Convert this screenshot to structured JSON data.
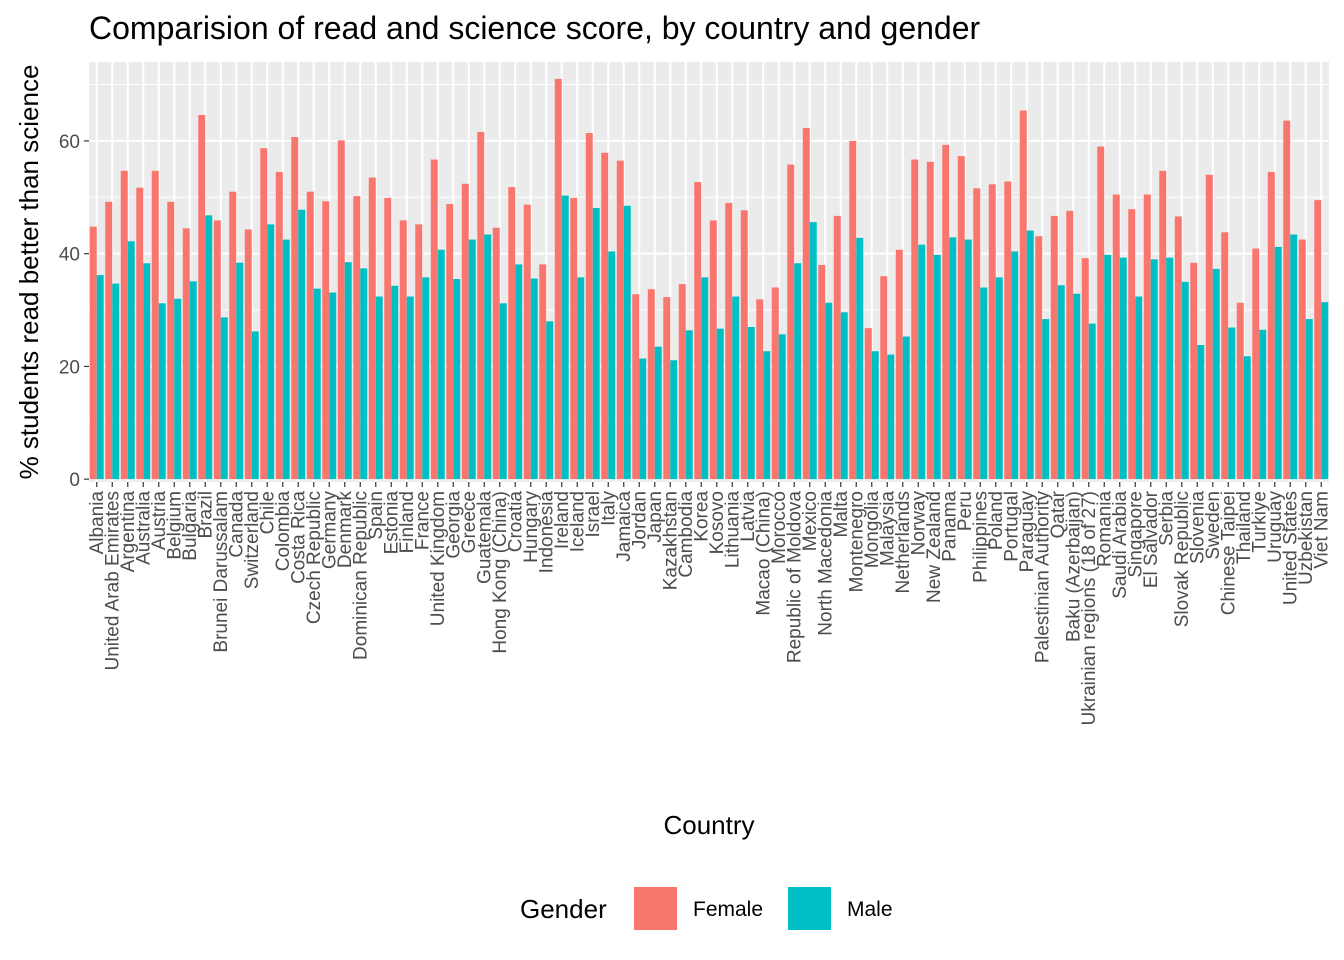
{
  "chart_data": {
    "type": "bar",
    "title": "Comparision of read and science score, by country and gender",
    "xlabel": "Country",
    "ylabel": "% students read better than science",
    "ylim": [
      -0.5,
      74
    ],
    "yticks": [
      0,
      20,
      40,
      60
    ],
    "grid": true,
    "legend": {
      "title": "Gender",
      "position": "bottom"
    },
    "colors": {
      "Female": "#F8766D",
      "Male": "#00BFC4",
      "panel": "#EBEBEB",
      "grid": "#FFFFFF"
    },
    "categories": [
      "Albania",
      "United Arab Emirates",
      "Argentina",
      "Australia",
      "Austria",
      "Belgium",
      "Bulgaria",
      "Brazil",
      "Brunei Darussalam",
      "Canada",
      "Switzerland",
      "Chile",
      "Colombia",
      "Costa Rica",
      "Czech Republic",
      "Germany",
      "Denmark",
      "Dominican Republic",
      "Spain",
      "Estonia",
      "Finland",
      "France",
      "United Kingdom",
      "Georgia",
      "Greece",
      "Guatemala",
      "Hong Kong (China)",
      "Croatia",
      "Hungary",
      "Indonesia",
      "Ireland",
      "Iceland",
      "Israel",
      "Italy",
      "Jamaica",
      "Jordan",
      "Japan",
      "Kazakhstan",
      "Cambodia",
      "Korea",
      "Kosovo",
      "Lithuania",
      "Latvia",
      "Macao (China)",
      "Morocco",
      "Republic of Moldova",
      "Mexico",
      "North Macedonia",
      "Malta",
      "Montenegro",
      "Mongolia",
      "Malaysia",
      "Netherlands",
      "Norway",
      "New Zealand",
      "Panama",
      "Peru",
      "Philippines",
      "Poland",
      "Portugal",
      "Paraguay",
      "Palestinian Authority",
      "Qatar",
      "Baku (Azerbaijan)",
      "Ukrainian regions (18 of 27)",
      "Romania",
      "Saudi Arabia",
      "Singapore",
      "El Salvador",
      "Serbia",
      "Slovak Republic",
      "Slovenia",
      "Sweden",
      "Chinese Taipei",
      "Thailand",
      "Turkiye",
      "Uruguay",
      "United States",
      "Uzbekistan",
      "Viet Nam"
    ],
    "series": [
      {
        "name": "Female",
        "values": [
          44.8,
          49.2,
          54.7,
          51.7,
          54.7,
          49.2,
          44.5,
          64.6,
          45.9,
          51.0,
          44.3,
          58.7,
          54.5,
          60.7,
          51.0,
          49.3,
          60.1,
          50.2,
          53.5,
          49.9,
          45.9,
          45.2,
          56.7,
          48.8,
          52.4,
          61.6,
          44.6,
          51.8,
          48.7,
          38.1,
          71.0,
          49.9,
          61.4,
          57.9,
          56.5,
          32.8,
          33.7,
          32.3,
          34.6,
          52.7,
          45.9,
          49.0,
          47.7,
          31.9,
          34.0,
          55.8,
          62.3,
          38.0,
          46.7,
          60.0,
          26.8,
          36.0,
          40.7,
          56.7,
          56.3,
          59.3,
          57.3,
          51.6,
          52.3,
          52.8,
          65.4,
          43.1,
          46.7,
          47.6,
          39.2,
          59.0,
          50.5,
          47.9,
          50.5,
          54.7,
          46.6,
          38.4,
          54.0,
          43.8,
          31.3,
          40.9,
          54.5,
          63.6,
          42.5,
          49.5
        ]
      },
      {
        "name": "Male",
        "values": [
          36.2,
          34.7,
          42.2,
          38.3,
          31.2,
          32.0,
          35.1,
          46.8,
          28.7,
          38.4,
          26.2,
          45.2,
          42.5,
          47.8,
          33.8,
          33.1,
          38.5,
          37.4,
          32.4,
          34.3,
          32.4,
          35.8,
          40.7,
          35.5,
          42.5,
          43.4,
          31.2,
          38.1,
          35.6,
          28.0,
          50.3,
          35.8,
          48.1,
          40.4,
          48.5,
          21.4,
          23.5,
          21.1,
          26.4,
          35.8,
          26.7,
          32.4,
          27.0,
          22.7,
          25.7,
          38.3,
          45.6,
          31.3,
          29.6,
          42.8,
          22.7,
          22.1,
          25.3,
          41.6,
          39.8,
          42.9,
          42.5,
          34.0,
          35.8,
          40.4,
          44.1,
          28.4,
          34.4,
          32.9,
          27.6,
          39.8,
          39.3,
          32.4,
          39.0,
          39.3,
          35.0,
          23.8,
          37.3,
          26.9,
          21.8,
          26.5,
          41.2,
          43.4,
          28.4,
          31.4
        ]
      }
    ]
  }
}
